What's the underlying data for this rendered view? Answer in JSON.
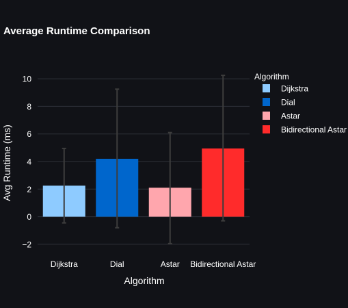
{
  "chart_data": {
    "type": "bar",
    "title": "Average Runtime Comparison",
    "xlabel": "Algorithm",
    "ylabel": "Avg Runtime (ms)",
    "categories": [
      "Dijkstra",
      "Dial",
      "Astar",
      "Bidirectional Astar"
    ],
    "values": [
      2.25,
      4.2,
      2.1,
      4.95
    ],
    "error_bars": [
      {
        "low": -0.45,
        "high": 4.95
      },
      {
        "low": -0.8,
        "high": 9.25
      },
      {
        "low": -1.95,
        "high": 6.1
      },
      {
        "low": -0.3,
        "high": 10.25
      }
    ],
    "colors": [
      "#8ecbff",
      "#0066cc",
      "#ffa6ad",
      "#ff2b2b"
    ],
    "ylim": [
      -2.9,
      11
    ],
    "yticks": [
      -2,
      0,
      2,
      4,
      6,
      8,
      10
    ],
    "ytick_labels": [
      "−2",
      "0",
      "2",
      "4",
      "6",
      "8",
      "10"
    ],
    "grid": true,
    "legend": {
      "title": "Algorithm",
      "placement": "top-right",
      "entries": [
        "Dijkstra",
        "Dial",
        "Astar",
        "Bidirectional Astar"
      ]
    }
  },
  "style": {
    "background": "#111217",
    "grid_color": "#2e3138",
    "errorbar_color": "#3d3d3d",
    "text_color": "#ffffff"
  }
}
